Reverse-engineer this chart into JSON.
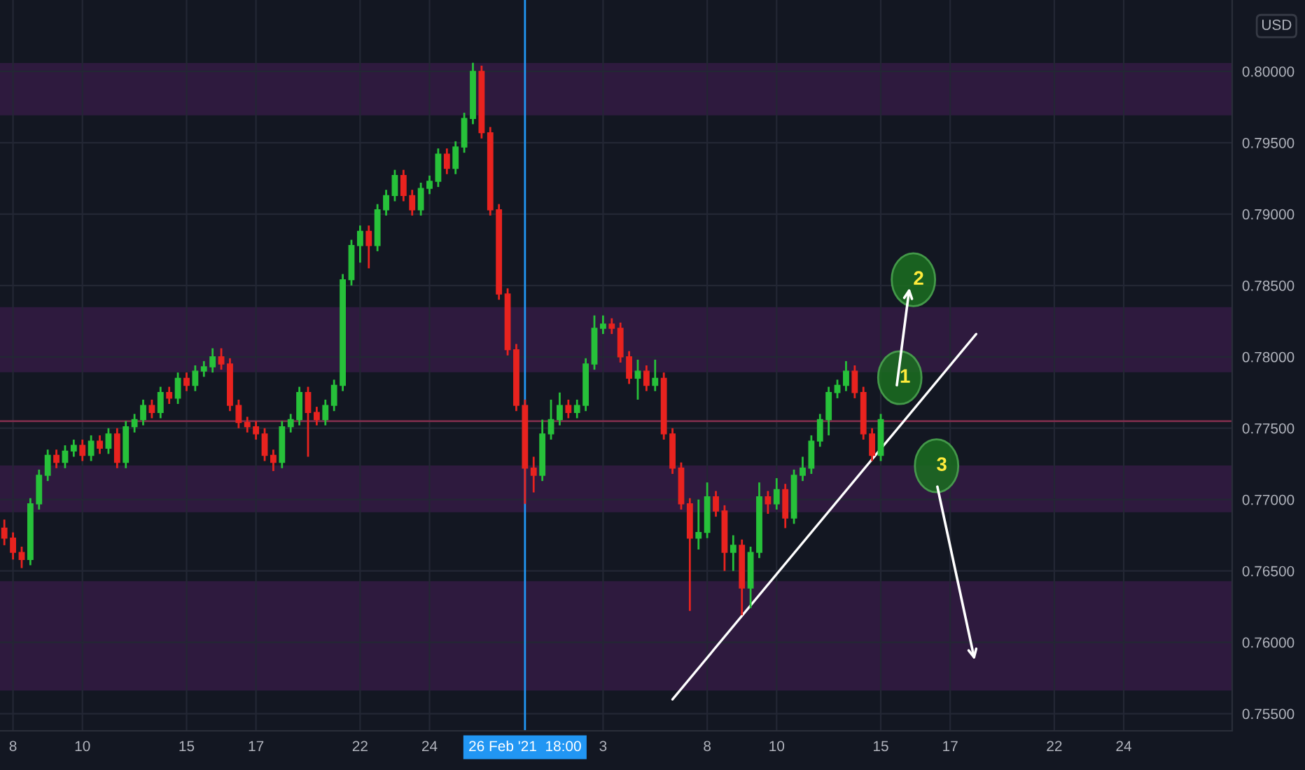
{
  "chart_data": {
    "type": "candlestick",
    "categories": [
      null,
      "8",
      null,
      null,
      null,
      null,
      null,
      null,
      null,
      "10",
      null,
      null,
      null,
      null,
      null,
      null,
      null,
      null,
      null,
      null,
      null,
      "15",
      null,
      null,
      null,
      null,
      null,
      null,
      null,
      "17",
      null,
      null,
      null,
      null,
      null,
      null,
      null,
      null,
      null,
      null,
      null,
      "22",
      null,
      null,
      null,
      null,
      null,
      null,
      null,
      "24",
      null,
      null,
      null,
      null,
      null,
      null,
      null,
      null,
      null,
      null,
      "26 Feb '21  18:00",
      null,
      null,
      null,
      null,
      null,
      null,
      null,
      null,
      "3",
      null,
      null,
      null,
      null,
      null,
      null,
      null,
      null,
      null,
      null,
      null,
      "8",
      null,
      null,
      null,
      null,
      null,
      null,
      null,
      "10",
      null,
      null,
      null,
      null,
      null,
      null,
      null,
      null,
      null,
      null,
      null,
      "15",
      null,
      null,
      null,
      null,
      null,
      null,
      null,
      "17",
      null,
      null,
      null,
      null,
      null,
      null,
      null,
      null,
      null,
      null,
      null,
      "22",
      null,
      null,
      null,
      null,
      null,
      null,
      null,
      "24",
      null,
      null,
      null,
      null,
      null,
      null,
      null,
      null,
      null,
      null,
      null,
      null
    ],
    "series": [
      {
        "ohlc": [
          [
            0.768,
            0.7686,
            0.7668,
            0.7673
          ],
          [
            0.7673,
            0.7677,
            0.7658,
            0.7663
          ],
          [
            0.7663,
            0.7667,
            0.7652,
            0.7658
          ],
          [
            0.7658,
            0.7701,
            0.7654,
            0.7697
          ],
          [
            0.7697,
            0.7721,
            0.7693,
            0.7717
          ],
          [
            0.7717,
            0.7735,
            0.7713,
            0.7731
          ],
          [
            0.7731,
            0.7735,
            0.7722,
            0.7726
          ],
          [
            0.7726,
            0.7738,
            0.7722,
            0.7734
          ],
          [
            0.7734,
            0.7742,
            0.773,
            0.7738
          ],
          [
            0.7738,
            0.7742,
            0.7727,
            0.7731
          ],
          [
            0.7731,
            0.7745,
            0.7727,
            0.7741
          ],
          [
            0.7741,
            0.7745,
            0.7732,
            0.7736
          ],
          [
            0.7736,
            0.775,
            0.7732,
            0.7746
          ],
          [
            0.7746,
            0.775,
            0.7722,
            0.7726
          ],
          [
            0.7726,
            0.7755,
            0.7722,
            0.7751
          ],
          [
            0.7751,
            0.776,
            0.7747,
            0.7756
          ],
          [
            0.7756,
            0.777,
            0.7752,
            0.7766
          ],
          [
            0.7766,
            0.777,
            0.7757,
            0.7761
          ],
          [
            0.7761,
            0.7779,
            0.7757,
            0.7775
          ],
          [
            0.7775,
            0.7779,
            0.7767,
            0.7771
          ],
          [
            0.7771,
            0.7789,
            0.7767,
            0.7785
          ],
          [
            0.7785,
            0.7789,
            0.7776,
            0.778
          ],
          [
            0.778,
            0.7794,
            0.7776,
            0.779
          ],
          [
            0.779,
            0.7797,
            0.7786,
            0.7793
          ],
          [
            0.7793,
            0.7806,
            0.7789,
            0.78
          ],
          [
            0.78,
            0.7806,
            0.7791,
            0.7795
          ],
          [
            0.7795,
            0.7799,
            0.7762,
            0.7766
          ],
          [
            0.7766,
            0.777,
            0.775,
            0.7754
          ],
          [
            0.7754,
            0.7758,
            0.7747,
            0.7751
          ],
          [
            0.7751,
            0.7755,
            0.7742,
            0.7746
          ],
          [
            0.7746,
            0.775,
            0.7727,
            0.7731
          ],
          [
            0.7731,
            0.7735,
            0.772,
            0.7726
          ],
          [
            0.7726,
            0.7755,
            0.7722,
            0.7751
          ],
          [
            0.7751,
            0.776,
            0.7747,
            0.7756
          ],
          [
            0.7756,
            0.7779,
            0.7752,
            0.7775
          ],
          [
            0.7775,
            0.7779,
            0.773,
            0.7761
          ],
          [
            0.7761,
            0.7765,
            0.7752,
            0.7756
          ],
          [
            0.7756,
            0.777,
            0.7752,
            0.7766
          ],
          [
            0.7766,
            0.7784,
            0.7762,
            0.778
          ],
          [
            0.778,
            0.7858,
            0.7776,
            0.7854
          ],
          [
            0.7854,
            0.7882,
            0.785,
            0.7878
          ],
          [
            0.7878,
            0.7892,
            0.7866,
            0.7888
          ],
          [
            0.7888,
            0.7892,
            0.7862,
            0.7878
          ],
          [
            0.7878,
            0.7907,
            0.7874,
            0.7903
          ],
          [
            0.7903,
            0.7917,
            0.7899,
            0.7913
          ],
          [
            0.7913,
            0.7931,
            0.7909,
            0.7927
          ],
          [
            0.7927,
            0.7931,
            0.7909,
            0.7913
          ],
          [
            0.7913,
            0.7917,
            0.7899,
            0.7903
          ],
          [
            0.7903,
            0.7922,
            0.7899,
            0.7918
          ],
          [
            0.7918,
            0.7927,
            0.7914,
            0.7923
          ],
          [
            0.7923,
            0.7946,
            0.7919,
            0.7942
          ],
          [
            0.7942,
            0.7946,
            0.7928,
            0.7932
          ],
          [
            0.7932,
            0.7951,
            0.7928,
            0.7947
          ],
          [
            0.7947,
            0.7971,
            0.7943,
            0.7967
          ],
          [
            0.7967,
            0.8006,
            0.7963,
            0.8
          ],
          [
            0.8,
            0.8004,
            0.7953,
            0.7957
          ],
          [
            0.7957,
            0.7961,
            0.7899,
            0.7903
          ],
          [
            0.7903,
            0.7907,
            0.784,
            0.7844
          ],
          [
            0.7844,
            0.7848,
            0.7801,
            0.7805
          ],
          [
            0.7805,
            0.7809,
            0.7762,
            0.7766
          ],
          [
            0.7766,
            0.777,
            0.7697,
            0.7722
          ],
          [
            0.7722,
            0.773,
            0.7705,
            0.7717
          ],
          [
            0.7717,
            0.7756,
            0.7713,
            0.7746
          ],
          [
            0.7746,
            0.777,
            0.7742,
            0.7756
          ],
          [
            0.7756,
            0.7775,
            0.7752,
            0.7766
          ],
          [
            0.7766,
            0.777,
            0.7757,
            0.7761
          ],
          [
            0.7761,
            0.777,
            0.7757,
            0.7766
          ],
          [
            0.7766,
            0.7799,
            0.7762,
            0.7795
          ],
          [
            0.7795,
            0.7829,
            0.7791,
            0.782
          ],
          [
            0.782,
            0.7829,
            0.7816,
            0.7823
          ],
          [
            0.7823,
            0.7827,
            0.7816,
            0.782
          ],
          [
            0.782,
            0.7824,
            0.7796,
            0.78
          ],
          [
            0.78,
            0.7804,
            0.7781,
            0.7785
          ],
          [
            0.7785,
            0.7798,
            0.777,
            0.779
          ],
          [
            0.779,
            0.7794,
            0.7776,
            0.778
          ],
          [
            0.778,
            0.7798,
            0.7776,
            0.7785
          ],
          [
            0.7785,
            0.7789,
            0.7742,
            0.7746
          ],
          [
            0.7746,
            0.775,
            0.7718,
            0.7722
          ],
          [
            0.7722,
            0.7726,
            0.7693,
            0.7697
          ],
          [
            0.7697,
            0.7701,
            0.7622,
            0.7673
          ],
          [
            0.7673,
            0.77,
            0.7665,
            0.7677
          ],
          [
            0.7677,
            0.7712,
            0.7673,
            0.7702
          ],
          [
            0.7702,
            0.7706,
            0.7688,
            0.7692
          ],
          [
            0.7692,
            0.7696,
            0.765,
            0.7663
          ],
          [
            0.7663,
            0.7675,
            0.765,
            0.7668
          ],
          [
            0.7668,
            0.7672,
            0.7619,
            0.7638
          ],
          [
            0.7638,
            0.7667,
            0.7624,
            0.7663
          ],
          [
            0.7663,
            0.7712,
            0.7659,
            0.7702
          ],
          [
            0.7702,
            0.7706,
            0.769,
            0.7697
          ],
          [
            0.7697,
            0.7715,
            0.7693,
            0.7707
          ],
          [
            0.7707,
            0.7711,
            0.768,
            0.7687
          ],
          [
            0.7687,
            0.7721,
            0.7683,
            0.7717
          ],
          [
            0.7717,
            0.773,
            0.7713,
            0.7722
          ],
          [
            0.7722,
            0.7745,
            0.7718,
            0.7741
          ],
          [
            0.7741,
            0.776,
            0.7737,
            0.7756
          ],
          [
            0.7756,
            0.7779,
            0.7745,
            0.7775
          ],
          [
            0.7775,
            0.7784,
            0.7771,
            0.778
          ],
          [
            0.778,
            0.7797,
            0.7776,
            0.779
          ],
          [
            0.779,
            0.7794,
            0.7771,
            0.7775
          ],
          [
            0.7775,
            0.7779,
            0.7742,
            0.7746
          ],
          [
            0.7746,
            0.775,
            0.7727,
            0.7731
          ],
          [
            0.7731,
            0.776,
            0.7727,
            0.7756
          ],
          null,
          null,
          null,
          null,
          null,
          null,
          null,
          null,
          null,
          null,
          null,
          null,
          null,
          null,
          null,
          null,
          null,
          null,
          null,
          null,
          null,
          null,
          null,
          null,
          null,
          null,
          null,
          null,
          null,
          null,
          null,
          null,
          null,
          null,
          null,
          null,
          null,
          null,
          null,
          null
        ],
        "colors": [
          "#e8231f",
          "#e8231f",
          "#e8231f",
          "#27c13a",
          "#27c13a",
          "#27c13a",
          "#e8231f",
          "#27c13a",
          "#27c13a",
          "#e8231f",
          "#27c13a",
          "#e8231f",
          "#27c13a",
          "#e8231f",
          "#27c13a",
          "#27c13a",
          "#27c13a",
          "#e8231f",
          "#27c13a",
          "#e8231f",
          "#27c13a",
          "#e8231f",
          "#27c13a",
          "#27c13a",
          "#27c13a",
          "#e8231f",
          "#e8231f",
          "#e8231f",
          "#e8231f",
          "#e8231f",
          "#e8231f",
          "#e8231f",
          "#27c13a",
          "#27c13a",
          "#27c13a",
          "#e8231f",
          "#e8231f",
          "#27c13a",
          "#27c13a",
          "#27c13a",
          "#27c13a",
          "#27c13a",
          "#e8231f",
          "#27c13a",
          "#27c13a",
          "#27c13a",
          "#e8231f",
          "#e8231f",
          "#27c13a",
          "#27c13a",
          "#27c13a",
          "#e8231f",
          "#27c13a",
          "#27c13a",
          "#27c13a",
          "#e8231f",
          "#e8231f",
          "#e8231f",
          "#e8231f",
          "#e8231f",
          "#e8231f",
          "#e8231f",
          "#27c13a",
          "#27c13a",
          "#27c13a",
          "#e8231f",
          "#27c13a",
          "#27c13a",
          "#27c13a",
          "#27c13a",
          "#e8231f",
          "#e8231f",
          "#e8231f",
          "#27c13a",
          "#e8231f",
          "#27c13a",
          "#e8231f",
          "#e8231f",
          "#e8231f",
          "#e8231f",
          "#27c13a",
          "#27c13a",
          "#e8231f",
          "#e8231f",
          "#27c13a",
          "#e8231f",
          "#27c13a",
          "#27c13a",
          "#e8231f",
          "#27c13a",
          "#e8231f",
          "#27c13a",
          "#27c13a",
          "#27c13a",
          "#27c13a",
          "#27c13a",
          "#27c13a",
          "#27c13a",
          "#e8231f",
          "#e8231f",
          "#e8231f",
          "#27c13a",
          null,
          null,
          null,
          null,
          null,
          null,
          null,
          null,
          null,
          null,
          null,
          null,
          null,
          null,
          null,
          null,
          null,
          null,
          null,
          null,
          null,
          null,
          null,
          null,
          null,
          null,
          null,
          null,
          null,
          null,
          null,
          null,
          null,
          null,
          null,
          null,
          null,
          null,
          null,
          null
        ]
      },
      {
        "type": "line",
        "color": "#ffffff",
        "values": [
          null,
          null,
          null,
          null,
          null,
          null,
          null,
          null,
          null,
          null,
          null,
          null,
          null,
          null,
          null,
          null,
          null,
          null,
          null,
          null,
          null,
          null,
          null,
          null,
          null,
          null,
          null,
          null,
          null,
          null,
          null,
          null,
          null,
          null,
          null,
          null,
          null,
          null,
          null,
          null,
          null,
          null,
          null,
          null,
          null,
          null,
          null,
          null,
          null,
          null,
          null,
          null,
          null,
          null,
          null,
          null,
          null,
          null,
          null,
          null,
          null,
          null,
          null,
          null,
          null,
          null,
          null,
          null,
          null,
          null,
          null,
          null,
          null,
          null,
          null,
          null,
          null,
          0.756,
          null,
          null,
          null,
          null,
          null,
          null,
          null,
          null,
          null,
          null,
          null,
          null,
          null,
          null,
          null,
          null,
          null,
          null,
          null,
          null,
          null,
          null,
          null,
          null,
          null,
          null,
          null,
          null,
          null,
          null,
          null,
          null,
          null,
          null,
          0.7816,
          null,
          null,
          null,
          null,
          null,
          null,
          null,
          null,
          null,
          null,
          null,
          null,
          null,
          null,
          null,
          null,
          null,
          null,
          null,
          null,
          null,
          null,
          null,
          null,
          null,
          null,
          null,
          null,
          null
        ]
      }
    ],
    "ylim": [
      0.7538,
      0.805
    ],
    "yticks": [
      {
        "value": 0.755,
        "label": "0.75500"
      },
      {
        "value": 0.76,
        "label": "0.76000"
      },
      {
        "value": 0.765,
        "label": "0.76500"
      },
      {
        "value": 0.77,
        "label": "0.77000"
      },
      {
        "value": 0.775,
        "label": "0.77500"
      },
      {
        "value": 0.78,
        "label": "0.78000"
      },
      {
        "value": 0.785,
        "label": "0.78500"
      },
      {
        "value": 0.79,
        "label": "0.79000"
      },
      {
        "value": 0.795,
        "label": "0.79500"
      },
      {
        "value": 0.8,
        "label": "0.80000"
      }
    ],
    "grid": true,
    "bands": [
      {
        "axis": "y",
        "from": 0.797,
        "to": 0.8005,
        "color": "#9c27b0"
      },
      {
        "axis": "y",
        "from": 0.779,
        "to": 0.7834,
        "color": "#9c27b0"
      },
      {
        "axis": "y",
        "from": 0.7692,
        "to": 0.7723,
        "color": "#9c27b0"
      },
      {
        "axis": "y",
        "from": 0.7567,
        "to": 0.7642,
        "color": "#9c27b0"
      }
    ],
    "ref_lines": [
      {
        "axis": "y",
        "value": 0.7755,
        "color": "#7a2d4a"
      },
      {
        "axis": "x",
        "value": "26 Feb '21  18:00",
        "color": "#2196f3"
      }
    ],
    "annotations": [
      "1",
      "2",
      "3",
      "USD"
    ]
  }
}
